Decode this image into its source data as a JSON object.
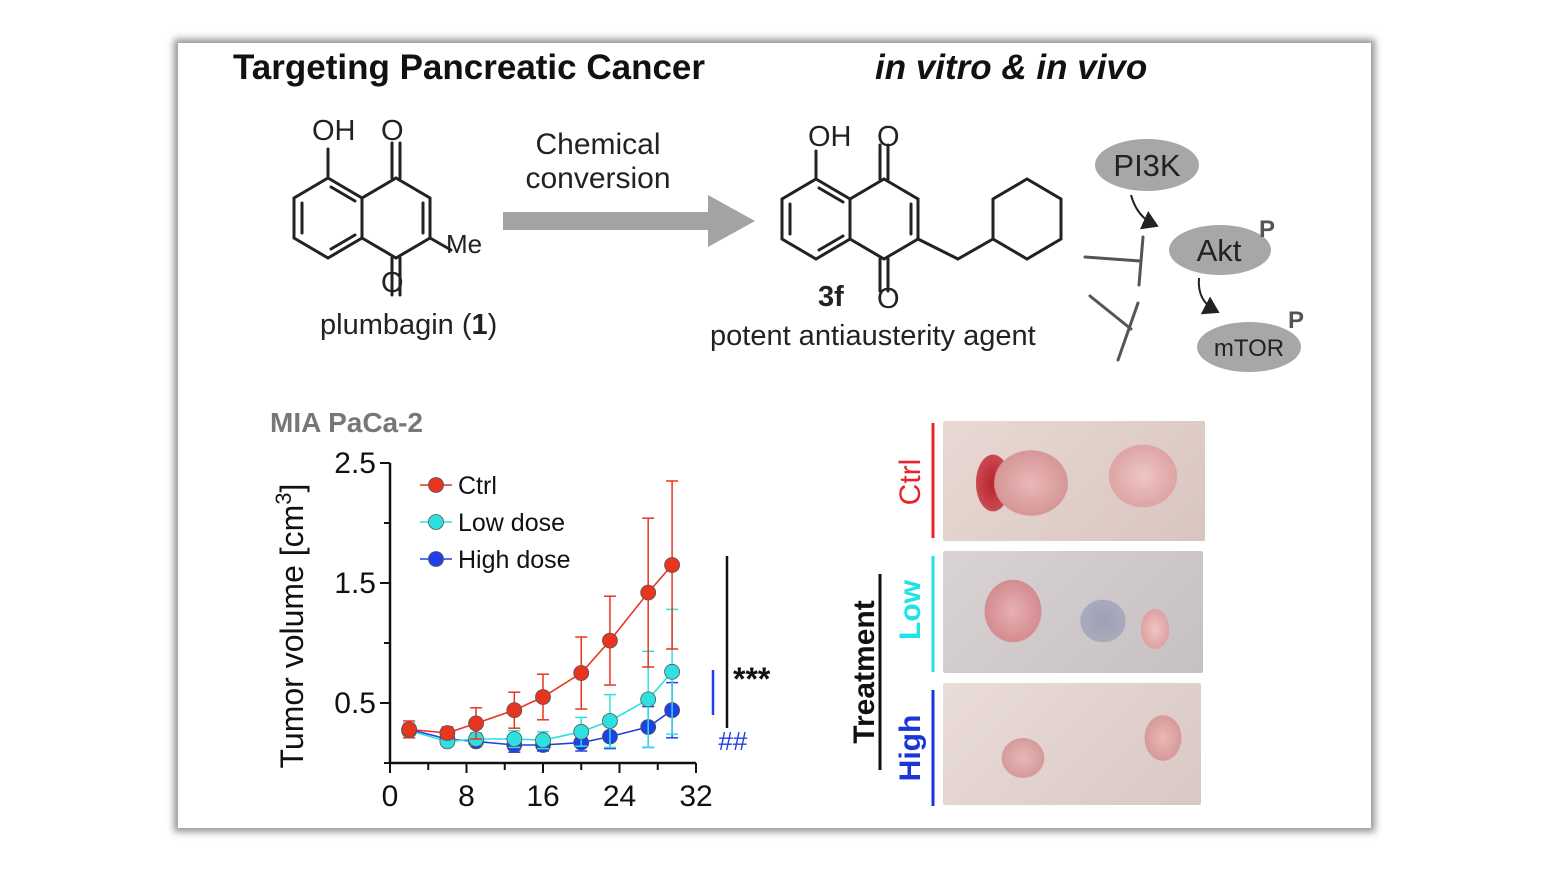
{
  "header": {
    "title_left": "Targeting Pancreatic Cancer",
    "title_right": "in vitro & in vivo"
  },
  "scheme": {
    "start": {
      "name": "plumbagin (",
      "number": "1",
      "name_end": ")",
      "atoms": {
        "oh": "OH",
        "o_top": "O",
        "o_bottom": "O",
        "me": "Me"
      }
    },
    "arrow_label": "Chemical conversion",
    "product": {
      "id": "3f",
      "description": "potent antiausterity agent",
      "atoms": {
        "oh": "OH",
        "o_top": "O",
        "o_bottom": "O"
      }
    },
    "pathway": {
      "pi3k": "PI3K",
      "akt": "Akt",
      "mtor": "mTOR",
      "phospho": "P"
    }
  },
  "chart_data": {
    "type": "line",
    "title": "MIA PaCa-2",
    "xlabel": "",
    "ylabel": "Tumor volume [cm",
    "ylabel_superscript": "3",
    "ylabel_end": "]",
    "xlim": [
      0,
      32
    ],
    "ylim": [
      0,
      2.5
    ],
    "xticks": [
      0,
      8,
      16,
      24,
      32
    ],
    "yticks": [
      0.5,
      1.5,
      2.5
    ],
    "legend": "top-left",
    "series": [
      {
        "name": "Ctrl",
        "color": "#e8351f",
        "x": [
          2,
          6,
          9,
          13,
          16,
          20,
          23,
          27,
          29.5
        ],
        "y": [
          0.28,
          0.25,
          0.33,
          0.44,
          0.55,
          0.75,
          1.02,
          1.42,
          1.65
        ],
        "err": [
          0.07,
          0.05,
          0.13,
          0.15,
          0.19,
          0.3,
          0.37,
          0.62,
          0.7
        ]
      },
      {
        "name": "Low dose",
        "color": "#2fe0e0",
        "x": [
          2,
          6,
          9,
          13,
          16,
          20,
          23,
          27,
          29.5
        ],
        "y": [
          0.27,
          0.18,
          0.2,
          0.2,
          0.19,
          0.26,
          0.35,
          0.53,
          0.76
        ],
        "err": [
          0.06,
          0.04,
          0.05,
          0.07,
          0.07,
          0.12,
          0.22,
          0.4,
          0.52
        ]
      },
      {
        "name": "High dose",
        "color": "#1e40e6",
        "x": [
          2,
          6,
          9,
          13,
          16,
          20,
          23,
          27,
          29.5
        ],
        "y": [
          0.28,
          0.2,
          0.18,
          0.15,
          0.15,
          0.17,
          0.22,
          0.3,
          0.44
        ],
        "err": [
          0.05,
          0.03,
          0.04,
          0.06,
          0.05,
          0.07,
          0.1,
          0.17,
          0.23
        ]
      }
    ],
    "annotations": [
      {
        "text": "***",
        "color": "#111111"
      },
      {
        "text": "##",
        "color": "#1e40e6"
      }
    ]
  },
  "photos": {
    "ctrl_label": "Ctrl",
    "low_label": "Low",
    "high_label": "High",
    "group_label": "Treatment",
    "colors": {
      "ctrl": "#e8232a",
      "low": "#1fe3e6",
      "high": "#1a36d8"
    }
  }
}
